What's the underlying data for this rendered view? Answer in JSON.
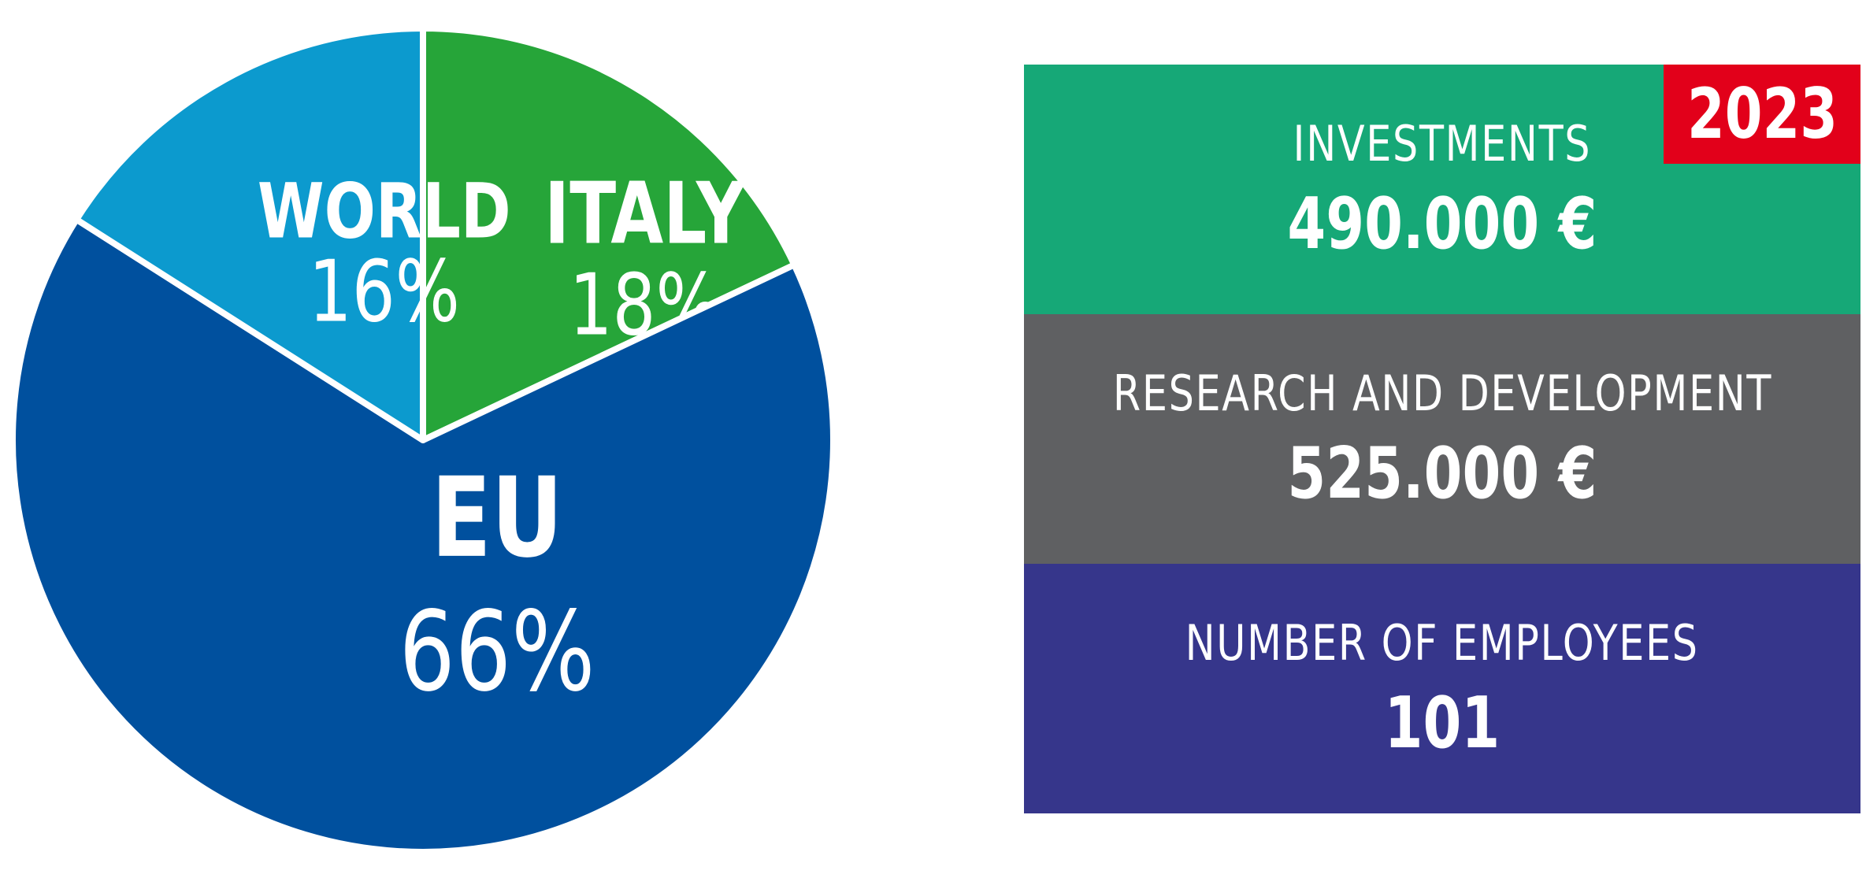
{
  "colors": {
    "world": "#0c9ace",
    "italy": "#26a539",
    "eu": "#00509e",
    "investments": "#16a877",
    "research": "#5f6062",
    "employees": "#36368b",
    "badge": "#e2001a",
    "separator": "#ffffff"
  },
  "chart_data": {
    "type": "pie",
    "unit": "%",
    "slices": [
      {
        "label": "ITALY",
        "value": 18,
        "display": "18%",
        "color": "#26a539"
      },
      {
        "label": "EU",
        "value": 66,
        "display": "66%",
        "color": "#00509e"
      },
      {
        "label": "WORLD",
        "value": 16,
        "display": "16%",
        "color": "#0c9ace"
      }
    ],
    "start_angle_deg": 0,
    "direction": "clockwise",
    "legend": "none"
  },
  "kpis": {
    "year": "2023",
    "items": [
      {
        "key": "investments",
        "label": "INVESTMENTS",
        "value": "490.000 €"
      },
      {
        "key": "research",
        "label": "RESEARCH AND DEVELOPMENT",
        "value": "525.000 €"
      },
      {
        "key": "employees",
        "label": "NUMBER OF EMPLOYEES",
        "value": "101"
      }
    ]
  }
}
